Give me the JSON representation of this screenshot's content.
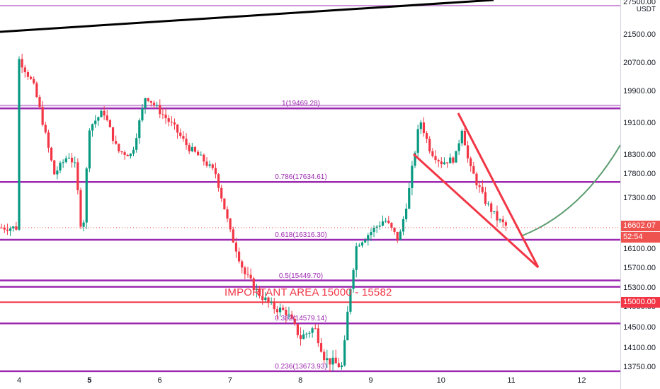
{
  "pair": {
    "quote": "USDT"
  },
  "colors": {
    "up": "#089981",
    "down": "#f23645",
    "fib": "#9c27b0",
    "fib_light": "#ce93d8",
    "red_line": "#f23645",
    "trend": "#000000",
    "curve": "#5d9c6f"
  },
  "price_axis": {
    "ticks": [
      "27500.00",
      "21500.00",
      "20700.00",
      "19900.00",
      "19100.00",
      "18300.00",
      "17800.00",
      "17300.00",
      "16100.00",
      "15700.00",
      "15300.00",
      "14900.00",
      "14500.00",
      "14100.00",
      "13750.00"
    ],
    "current_price": "16602.07",
    "countdown": "52:54",
    "level_price": "15000.00"
  },
  "time_axis": {
    "labels": [
      {
        "text": "4",
        "bold": false
      },
      {
        "text": "5",
        "bold": true
      },
      {
        "text": "6",
        "bold": false
      },
      {
        "text": "7",
        "bold": false
      },
      {
        "text": "8",
        "bold": false
      },
      {
        "text": "9",
        "bold": false
      },
      {
        "text": "10",
        "bold": false
      },
      {
        "text": "11",
        "bold": false
      },
      {
        "text": "12",
        "bold": false
      }
    ]
  },
  "fib_levels": [
    {
      "label": "1(19469.28)",
      "price": 19469.28
    },
    {
      "label": "0.786(17634.61)",
      "price": 17634.61
    },
    {
      "label": "0.618(16316.30)",
      "price": 16316.3
    },
    {
      "label": "0.5(15449.70)",
      "price": 15449.7
    },
    {
      "label": "0.382(14579.14)",
      "price": 14579.14
    },
    {
      "label": "0.236(13673.93)",
      "price": 13673.93
    }
  ],
  "annotation": {
    "important_area": "IMPORTANT AREA 15000 - 15582"
  },
  "chart_data": {
    "type": "candlestick",
    "quote": "USDT",
    "x_range": [
      4,
      12
    ],
    "y_axis_ticks": [
      27500,
      21500,
      20700,
      19900,
      19100,
      18300,
      17800,
      17300,
      16100,
      15700,
      15300,
      14900,
      14500,
      14100,
      13750
    ],
    "current_price": 16602.07,
    "horizontal_levels": [
      15000.0,
      15582
    ],
    "close_path": [
      {
        "x": 4.0,
        "y": 20800
      },
      {
        "x": 4.2,
        "y": 20100
      },
      {
        "x": 4.3,
        "y": 19400
      },
      {
        "x": 4.5,
        "y": 17800
      },
      {
        "x": 4.7,
        "y": 18300
      },
      {
        "x": 4.8,
        "y": 18000
      },
      {
        "x": 4.9,
        "y": 16300
      },
      {
        "x": 5.0,
        "y": 19000
      },
      {
        "x": 5.2,
        "y": 19400
      },
      {
        "x": 5.4,
        "y": 18400
      },
      {
        "x": 5.6,
        "y": 18300
      },
      {
        "x": 5.8,
        "y": 19800
      },
      {
        "x": 6.0,
        "y": 19400
      },
      {
        "x": 6.2,
        "y": 19000
      },
      {
        "x": 6.4,
        "y": 18500
      },
      {
        "x": 6.6,
        "y": 18200
      },
      {
        "x": 6.8,
        "y": 17800
      },
      {
        "x": 6.9,
        "y": 17200
      },
      {
        "x": 7.0,
        "y": 16500
      },
      {
        "x": 7.2,
        "y": 15600
      },
      {
        "x": 7.4,
        "y": 15200
      },
      {
        "x": 7.6,
        "y": 14900
      },
      {
        "x": 7.8,
        "y": 14800
      },
      {
        "x": 8.0,
        "y": 14300
      },
      {
        "x": 8.2,
        "y": 14500
      },
      {
        "x": 8.35,
        "y": 13900
      },
      {
        "x": 8.6,
        "y": 13750
      },
      {
        "x": 8.7,
        "y": 15200
      },
      {
        "x": 8.8,
        "y": 16200
      },
      {
        "x": 9.0,
        "y": 16500
      },
      {
        "x": 9.2,
        "y": 16800
      },
      {
        "x": 9.4,
        "y": 16300
      },
      {
        "x": 9.55,
        "y": 17500
      },
      {
        "x": 9.7,
        "y": 19200
      },
      {
        "x": 9.85,
        "y": 18400
      },
      {
        "x": 10.0,
        "y": 18100
      },
      {
        "x": 10.2,
        "y": 18200
      },
      {
        "x": 10.3,
        "y": 19000
      },
      {
        "x": 10.4,
        "y": 18000
      },
      {
        "x": 10.6,
        "y": 17300
      },
      {
        "x": 10.8,
        "y": 16800
      },
      {
        "x": 10.95,
        "y": 16602
      }
    ]
  }
}
